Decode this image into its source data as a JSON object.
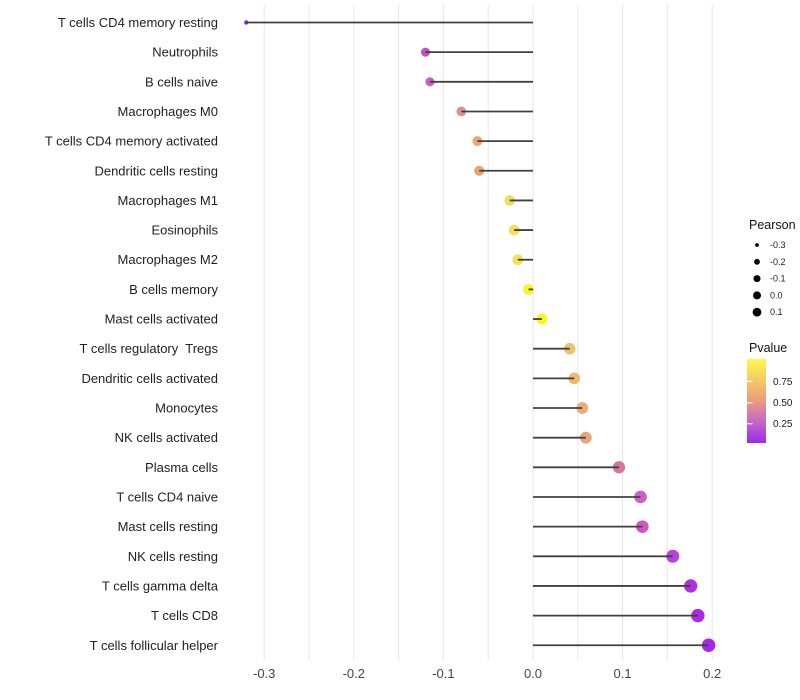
{
  "chart_data": {
    "type": "lollipop",
    "title": "",
    "xlabel": "",
    "ylabel": "",
    "x_axis": {
      "range": [
        -0.346,
        0.222
      ],
      "ticks": [
        -0.3,
        -0.2,
        -0.1,
        0.0,
        0.1,
        0.2
      ],
      "tick_labels": [
        "-0.3",
        "-0.2",
        "-0.1",
        "0.0",
        "0.1",
        "0.2"
      ],
      "minor_grid_step": 0.05,
      "grid": "on"
    },
    "points": [
      {
        "label": "T cells CD4 memory resting",
        "pearson": -0.32,
        "color": "#8426df",
        "pvalue_approx": 0.08
      },
      {
        "label": "Neutrophils",
        "pearson": -0.12,
        "color": "#c553bd",
        "pvalue_approx": 0.28
      },
      {
        "label": "B cells naive",
        "pearson": -0.115,
        "color": "#c75fc5",
        "pvalue_approx": 0.3
      },
      {
        "label": "Macrophages M0",
        "pearson": -0.08,
        "color": "#e18e92",
        "pvalue_approx": 0.47
      },
      {
        "label": "T cells CD4 memory activated",
        "pearson": -0.062,
        "color": "#eca672",
        "pvalue_approx": 0.55
      },
      {
        "label": "Dendritic cells resting",
        "pearson": -0.06,
        "color": "#eba36e",
        "pvalue_approx": 0.56
      },
      {
        "label": "Macrophages M1",
        "pearson": -0.026,
        "color": "#f2dc5c",
        "pvalue_approx": 0.72
      },
      {
        "label": "Eosinophils",
        "pearson": -0.021,
        "color": "#f4df55",
        "pvalue_approx": 0.74
      },
      {
        "label": "Macrophages M2",
        "pearson": -0.017,
        "color": "#f3e057",
        "pvalue_approx": 0.74
      },
      {
        "label": "B cells memory",
        "pearson": -0.005,
        "color": "#fbf32c",
        "pvalue_approx": 0.88
      },
      {
        "label": "Mast cells activated",
        "pearson": 0.01,
        "color": "#fcf32b",
        "pvalue_approx": 0.88
      },
      {
        "label": "T cells regulatory  Tregs",
        "pearson": 0.041,
        "color": "#ecc36c",
        "pvalue_approx": 0.64
      },
      {
        "label": "Dendritic cells activated",
        "pearson": 0.046,
        "color": "#ecba6a",
        "pvalue_approx": 0.61
      },
      {
        "label": "Monocytes",
        "pearson": 0.055,
        "color": "#ebaa77",
        "pvalue_approx": 0.56
      },
      {
        "label": "NK cells activated",
        "pearson": 0.059,
        "color": "#e9a47a",
        "pvalue_approx": 0.53
      },
      {
        "label": "Plasma cells",
        "pearson": 0.096,
        "color": "#d8739b",
        "pvalue_approx": 0.4
      },
      {
        "label": "T cells CD4 naive",
        "pearson": 0.12,
        "color": "#cc5fc4",
        "pvalue_approx": 0.3
      },
      {
        "label": "Mast cells resting",
        "pearson": 0.122,
        "color": "#cd58c4",
        "pvalue_approx": 0.28
      },
      {
        "label": "NK cells resting",
        "pearson": 0.156,
        "color": "#b843d9",
        "pvalue_approx": 0.18
      },
      {
        "label": "T cells gamma delta",
        "pearson": 0.176,
        "color": "#ae30e0",
        "pvalue_approx": 0.12
      },
      {
        "label": "T cells CD8",
        "pearson": 0.184,
        "color": "#aa2ae3",
        "pvalue_approx": 0.1
      },
      {
        "label": "T cells follicular helper",
        "pearson": 0.196,
        "color": "#a527e6",
        "pvalue_approx": 0.09
      }
    ],
    "legend": {
      "position": "right",
      "size_legend": {
        "title": "Pearson",
        "entry_labels": [
          "-0.3",
          "-0.2",
          "-0.1",
          "0.0",
          "0.1"
        ]
      },
      "color_legend": {
        "title": "Pvalue",
        "tick_labels": [
          "0.75",
          "0.50",
          "0.25"
        ],
        "gradient_bottom_to_top": [
          "#9a2ae8",
          "#c466c8",
          "#e99b7e",
          "#f4cb63",
          "#fdf84e"
        ]
      }
    }
  },
  "style": {
    "background": "#ffffff",
    "grid_color": "#e7e7e7",
    "stem_color": "#404040",
    "x_tick_text_color": "#454545",
    "y_label_text_color": "#212121",
    "legend_text_color": "#1a1a1a",
    "legend_dot_color": "#000000"
  }
}
